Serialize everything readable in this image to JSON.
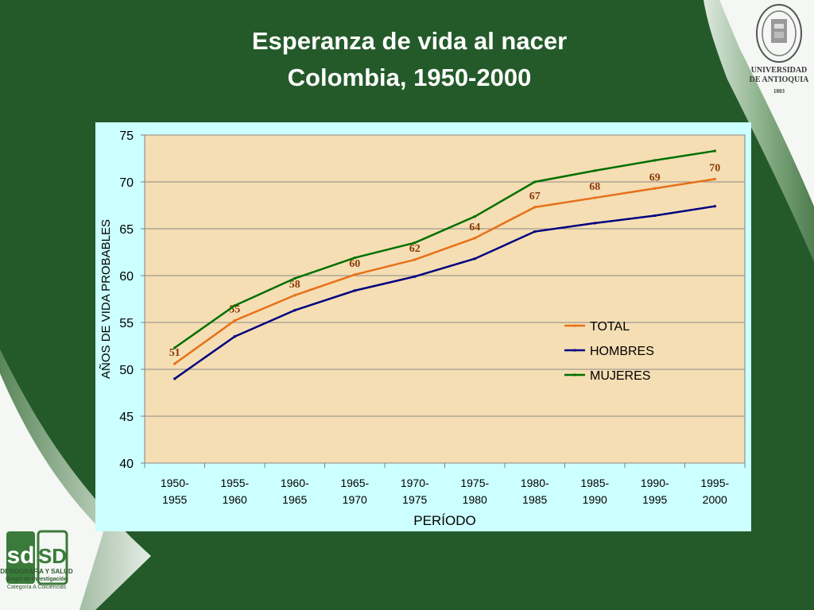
{
  "slide": {
    "title_line1": "Esperanza de vida al nacer",
    "title_line2": "Colombia, 1950-2000"
  },
  "branding": {
    "university_line1": "UNIVERSIDAD",
    "university_line2": "DE ANTIOQUIA",
    "university_year": "1803",
    "group_name": "DEMOGRAFÍA Y SALUD",
    "group_line2": "Grupo de Investigación",
    "group_line3": "Categoría A Colciencias",
    "sd_letters_left": "sd",
    "sd_letters_right": "SD"
  },
  "colors": {
    "dark_green": "#245a2a",
    "plot_bg": "#f5deb3",
    "panel_bg": "#ccffff",
    "total": "#e8701a",
    "hombres": "#000080",
    "mujeres": "#007000"
  },
  "chart_data": {
    "type": "line",
    "xlabel": "PERÍODO",
    "ylabel": "AÑOS DE VIDA PROBABLES",
    "ylim": [
      40,
      75
    ],
    "yticks": [
      40,
      45,
      50,
      55,
      60,
      65,
      70,
      75
    ],
    "categories": [
      [
        "1950-",
        "1955"
      ],
      [
        "1955-",
        "1960"
      ],
      [
        "1960-",
        "1965"
      ],
      [
        "1965-",
        "1970"
      ],
      [
        "1970-",
        "1975"
      ],
      [
        "1975-",
        "1980"
      ],
      [
        "1980-",
        "1985"
      ],
      [
        "1985-",
        "1990"
      ],
      [
        "1990-",
        "1995"
      ],
      [
        "1995-",
        "2000"
      ]
    ],
    "series": [
      {
        "name": "TOTAL",
        "color": "#e8701a",
        "values": [
          50.6,
          55.2,
          57.9,
          60.1,
          61.7,
          64.0,
          67.3,
          68.3,
          69.3,
          70.3
        ],
        "labels": [
          "51",
          "55",
          "58",
          "60",
          "62",
          "64",
          "67",
          "68",
          "69",
          "70"
        ]
      },
      {
        "name": "HOMBRES",
        "color": "#000080",
        "values": [
          49.0,
          53.5,
          56.3,
          58.4,
          59.9,
          61.8,
          64.7,
          65.6,
          66.4,
          67.4
        ]
      },
      {
        "name": "MUJERES",
        "color": "#007000",
        "values": [
          52.3,
          56.8,
          59.7,
          61.9,
          63.5,
          66.3,
          70.0,
          71.2,
          72.3,
          73.3
        ]
      }
    ],
    "grid": true,
    "legend_position": "right"
  }
}
